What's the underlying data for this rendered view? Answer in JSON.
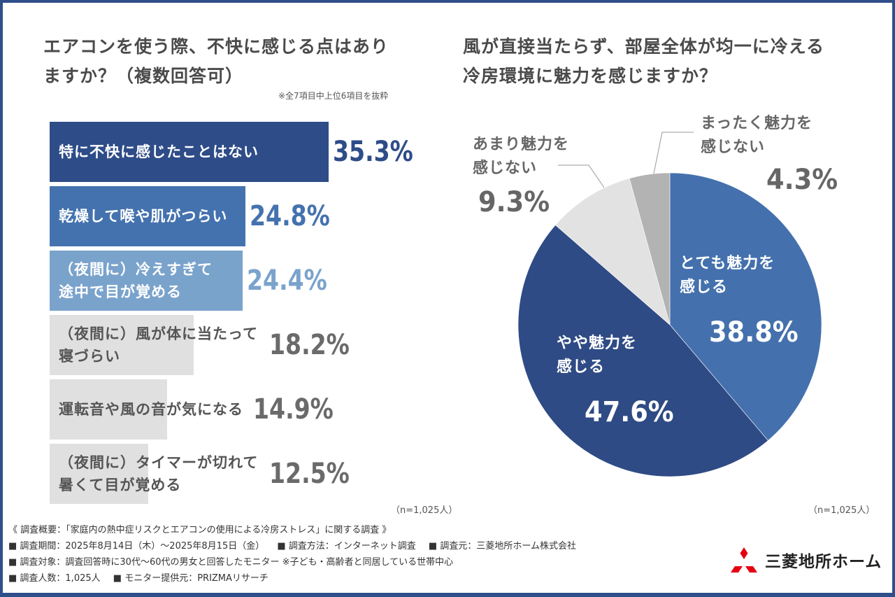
{
  "left_chart": {
    "title_line1": "エアコンを使う際、不快に感じる点はあり",
    "title_line2": "ますか？（複数回答可）",
    "note": "※全7項目中上位6項目を抜粋",
    "n_label": "（n=1,025人）"
  },
  "right_chart": {
    "title_line1": "風が直接当たらず、部屋全体が均一に冷える",
    "title_line2": "冷房環境に魅力を感じますか？",
    "n_label": "（n=1,025人）"
  },
  "chart_data": [
    {
      "type": "bar",
      "orientation": "horizontal",
      "title": "エアコンを使う際、不快に感じる点はありますか？（複数回答可）",
      "categories": [
        "特に不快に感じたことはない",
        "乾燥して喉や肌がつらい",
        "（夜間に）冷えすぎて\n途中で目が覚める",
        "（夜間に）風が体に当たって\n寝づらい",
        "運転音や風の音が気になる",
        "（夜間に）タイマーが切れて\n暑くて目が覚める"
      ],
      "values": [
        35.3,
        24.8,
        24.4,
        18.2,
        14.9,
        12.5
      ],
      "value_labels": [
        "35.3%",
        "24.8%",
        "24.4%",
        "18.2%",
        "14.9%",
        "12.5%"
      ],
      "unit": "%",
      "xlim": [
        0,
        45
      ],
      "bar_colors": [
        "#2e4c88",
        "#4472ae",
        "#7aa3cc",
        "#e0e0e0",
        "#e0e0e0",
        "#e0e0e0"
      ],
      "label_colors": [
        "#ffffff",
        "#ffffff",
        "#ffffff",
        "#555555",
        "#555555",
        "#555555"
      ],
      "value_colors": [
        "#2e4c88",
        "#4472ae",
        "#7aa3cc",
        "#6a6a6a",
        "#6a6a6a",
        "#6a6a6a"
      ],
      "grid": false
    },
    {
      "type": "pie",
      "title": "風が直接当たらず、部屋全体が均一に冷える冷房環境に魅力を感じますか？",
      "start": "top",
      "direction": "clockwise",
      "slices": [
        {
          "label": "とても魅力を\n感じる",
          "value": 38.8,
          "value_label": "38.8%",
          "color": "#4471ad",
          "text_color": "#ffffff"
        },
        {
          "label": "やや魅力を\n感じる",
          "value": 47.6,
          "value_label": "47.6%",
          "color": "#2f4b85",
          "text_color": "#ffffff"
        },
        {
          "label": "あまり魅力を\n感じない",
          "value": 9.3,
          "value_label": "9.3%",
          "color": "#e2e2e2",
          "text_color": "#666666"
        },
        {
          "label": "まったく魅力を\n感じない",
          "value": 4.3,
          "value_label": "4.3%",
          "color": "#b3b3b3",
          "text_color": "#666666"
        }
      ]
    }
  ],
  "footer": {
    "overview": "《 調査概要：「家庭内の熱中症リスクとエアコンの使用による冷房ストレス」に関する調査 》",
    "period": "■ 調査期間：2025年8月14日（木）～2025年8月15日（金）",
    "method": "■ 調査方法：インターネット調査",
    "source": "■ 調査元：三菱地所ホーム株式会社",
    "target": "■ 調査対象：調査回答時に30代～60代の男女と回答したモニター ※子ども・高齢者と同居している世帯中心",
    "count": "■ 調査人数：1,025人",
    "provider": "■ モニター提供元：PRIZMAリサーチ"
  },
  "logo": {
    "text": "三菱地所ホーム",
    "mark_color": "#e60012"
  },
  "frame_color": "#2f4f8a"
}
